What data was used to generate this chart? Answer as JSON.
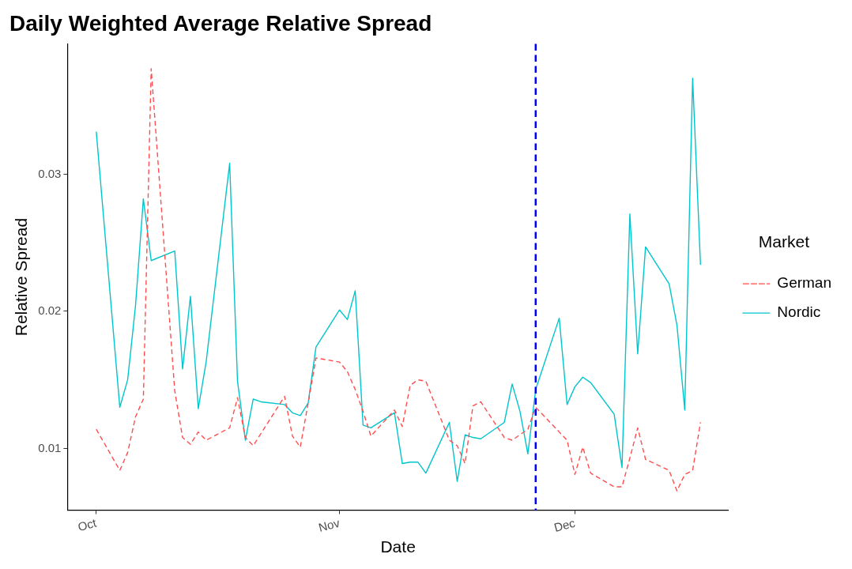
{
  "chart_data": {
    "type": "line",
    "title": "Daily Weighted Average Relative Spread",
    "xlabel": "Date",
    "ylabel": "Relative Spread",
    "legend_title": "Market",
    "legend": "right",
    "marker": "none",
    "x": [
      "--10-01",
      "--10-04",
      "--10-05",
      "--10-06",
      "--10-07",
      "--10-08",
      "--10-11",
      "--10-12",
      "--10-13",
      "--10-14",
      "--10-15",
      "--10-18",
      "--10-19",
      "--10-20",
      "--10-21",
      "--10-22",
      "--10-25",
      "--10-26",
      "--10-27",
      "--10-28",
      "--10-29",
      "--11-01",
      "--11-02",
      "--11-03",
      "--11-04",
      "--11-05",
      "--11-08",
      "--11-09",
      "--11-10",
      "--11-11",
      "--11-12",
      "--11-15",
      "--11-16",
      "--11-17",
      "--11-18",
      "--11-19",
      "--11-22",
      "--11-23",
      "--11-24",
      "--11-25",
      "--11-26",
      "--11-29",
      "--11-30",
      "--12-01",
      "--12-02",
      "--12-03",
      "--12-06",
      "--12-07",
      "--12-08",
      "--12-09",
      "--12-10",
      "--12-13",
      "--12-14",
      "--12-15",
      "--12-16",
      "--12-17"
    ],
    "series": [
      {
        "name": "German",
        "color": "#ff4d4d",
        "line_style": "dashed",
        "values": [
          0.0114,
          0.0084,
          0.0097,
          0.0123,
          0.0136,
          0.0377,
          0.0142,
          0.0108,
          0.0103,
          0.0112,
          0.0106,
          0.0115,
          0.0137,
          0.0108,
          0.0102,
          0.0111,
          0.0138,
          0.0109,
          0.0101,
          0.0133,
          0.0166,
          0.0163,
          0.0156,
          0.0143,
          0.0127,
          0.0109,
          0.0128,
          0.0116,
          0.0146,
          0.015,
          0.0149,
          0.0106,
          0.0102,
          0.0089,
          0.0131,
          0.0134,
          0.0108,
          0.0106,
          0.011,
          0.0114,
          0.013,
          0.0112,
          0.0106,
          0.0081,
          0.0101,
          0.0082,
          0.0072,
          0.0072,
          0.0093,
          0.0115,
          0.0092,
          0.0084,
          0.0069,
          0.0081,
          0.0084,
          0.0119
        ]
      },
      {
        "name": "Nordic",
        "color": "#00c5cd",
        "line_style": "solid",
        "values": [
          0.0331,
          0.013,
          0.015,
          0.0204,
          0.0282,
          0.0237,
          0.0244,
          0.0158,
          0.0211,
          0.0129,
          0.0163,
          0.0308,
          0.0149,
          0.0106,
          0.0136,
          0.0134,
          0.0132,
          0.0126,
          0.0124,
          0.0133,
          0.0174,
          0.0201,
          0.0194,
          0.0215,
          0.0117,
          0.0115,
          0.0126,
          0.0089,
          0.009,
          0.009,
          0.0082,
          0.0119,
          0.0076,
          0.011,
          0.0108,
          0.0107,
          0.0119,
          0.0147,
          0.0127,
          0.0096,
          0.0143,
          0.0195,
          0.0132,
          0.0145,
          0.0152,
          0.0148,
          0.0125,
          0.0086,
          0.0271,
          0.0169,
          0.0247,
          0.022,
          0.019,
          0.0128,
          0.037,
          0.0234
        ]
      }
    ],
    "xlim": [
      "--09-27T08:00",
      "--12-20T14:00"
    ],
    "xticks": [
      {
        "value": "--10-01",
        "label": "Oct"
      },
      {
        "value": "--11-01",
        "label": "Nov"
      },
      {
        "value": "--12-01",
        "label": "Dec"
      }
    ],
    "ylim": [
      0.0055,
      0.0395
    ],
    "yticks": [
      0.01,
      0.02,
      0.03
    ],
    "ref_lines": [
      {
        "axis": "x",
        "value": "--11-26",
        "color": "#0000ff",
        "line_style": "dashed"
      }
    ]
  }
}
